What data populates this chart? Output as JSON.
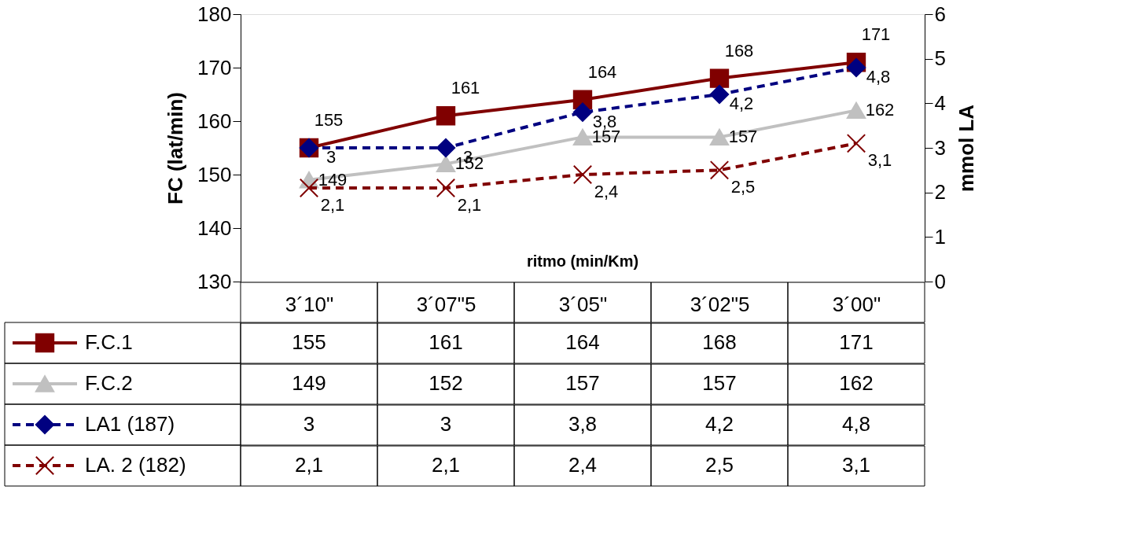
{
  "chart_data": {
    "type": "line",
    "categories": [
      "3´10\"",
      "3´07\"5",
      "3´05\"",
      "3´02\"5",
      "3´00\""
    ],
    "xlabel": "ritmo (min/Km)",
    "ylabel": "FC (lat/min)",
    "y2label": "mmol LA",
    "ylim": [
      130,
      180
    ],
    "yticks": [
      130,
      140,
      150,
      160,
      170,
      180
    ],
    "y2lim": [
      0,
      6
    ],
    "y2ticks": [
      0,
      1,
      2,
      3,
      4,
      5,
      6
    ],
    "grid": false,
    "legend": "bottom",
    "series": [
      {
        "name": "F.C.1",
        "color": "#800000",
        "marker": "square",
        "line_style": "solid",
        "values": [
          155,
          161,
          164,
          168,
          171
        ],
        "value_labels": [
          "155",
          "161",
          "164",
          "168",
          "171"
        ]
      },
      {
        "name": "F.C.2",
        "color": "#c0c0c0",
        "marker": "triangle",
        "line_style": "solid",
        "values": [
          149,
          152,
          157,
          157,
          162
        ],
        "value_labels": [
          "149",
          "152",
          "157",
          "157",
          "162"
        ]
      },
      {
        "name": "LA1 (187)",
        "color": "#000080",
        "marker": "diamond",
        "line_style": "dashed",
        "axis": "y2",
        "values": [
          3,
          3,
          3.8,
          4.2,
          4.8
        ],
        "value_labels": [
          "3",
          "3",
          "3,8",
          "4,2",
          "4,8"
        ]
      },
      {
        "name": "LA. 2 (182)",
        "color": "#800000",
        "marker": "cross",
        "line_style": "dashed",
        "axis": "y2",
        "values": [
          2.1,
          2.1,
          2.4,
          2.5,
          3.1
        ],
        "value_labels": [
          "2,1",
          "2,1",
          "2,4",
          "2,5",
          "3,1"
        ]
      }
    ]
  }
}
